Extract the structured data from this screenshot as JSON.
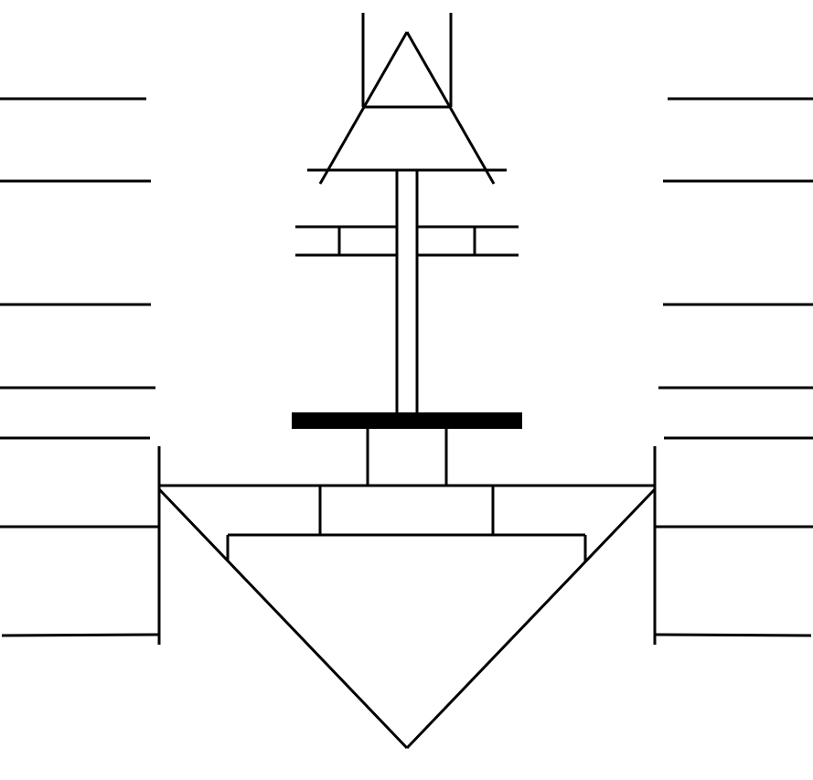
{
  "colors": {
    "stroke": "#000000",
    "background": "#ffffff"
  }
}
